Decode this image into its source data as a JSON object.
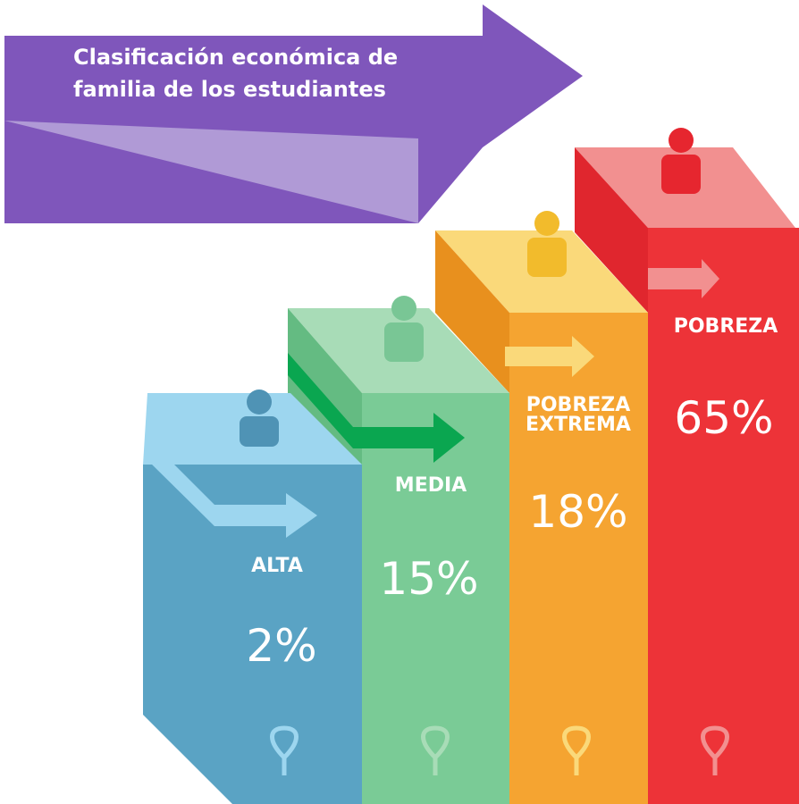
{
  "title": "Clasificación económica de familia de los estudiantes",
  "items": [
    {
      "label": "ALTA",
      "value": "2%"
    },
    {
      "label": "MEDIA",
      "value": "15%"
    },
    {
      "label": "POBREZA EXTREMA",
      "value": "18%"
    },
    {
      "label": "POBREZA",
      "value": "65%"
    }
  ]
}
